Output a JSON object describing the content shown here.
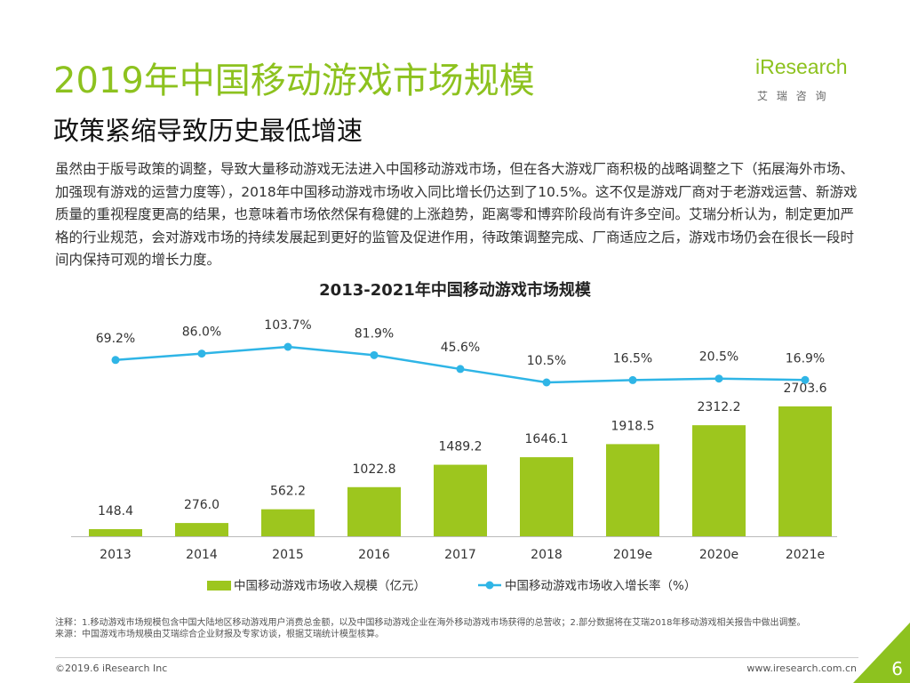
{
  "header": {
    "title": "2019年中国移动游戏市场规模",
    "subtitle": "政策紧缩导致历史最低增速"
  },
  "logo": {
    "name": "iResearch",
    "cn": "艾 瑞 咨 询"
  },
  "body": "虽然由于版号政策的调整，导致大量移动游戏无法进入中国移动游戏市场，但在各大游戏厂商积极的战略调整之下（拓展海外市场、加强现有游戏的运营力度等），2018年中国移动游戏市场收入同比增长仍达到了10.5%。这不仅是游戏厂商对于老游戏运营、新游戏质量的重视程度更高的结果，也意味着市场依然保有稳健的上涨趋势，距离零和博弈阶段尚有许多空间。艾瑞分析认为，制定更加严格的行业规范，会对游戏市场的持续发展起到更好的监管及促进作用，待政策调整完成、厂商适应之后，游戏市场仍会在很长一段时间内保持可观的增长力度。",
  "chart_data": {
    "type": "bar-line",
    "title": "2013-2021年中国移动游戏市场规模",
    "categories": [
      "2013",
      "2014",
      "2015",
      "2016",
      "2017",
      "2018",
      "2019e",
      "2020e",
      "2021e"
    ],
    "series": [
      {
        "name": "中国移动游戏市场收入规模（亿元）",
        "type": "bar",
        "color": "#9dc61e",
        "values": [
          148.4,
          276.0,
          562.2,
          1022.8,
          1489.2,
          1646.1,
          1918.5,
          2312.2,
          2703.6
        ],
        "value_labels": [
          "148.4",
          "276.0",
          "562.2",
          "1022.8",
          "1489.2",
          "1646.1",
          "1918.5",
          "2312.2",
          "2703.6"
        ]
      },
      {
        "name": "中国移动游戏市场收入增长率（%）",
        "type": "line",
        "color": "#2fb5e6",
        "values": [
          69.2,
          86.0,
          103.7,
          81.9,
          45.6,
          10.5,
          16.5,
          20.5,
          16.9
        ],
        "value_labels": [
          "69.2%",
          "86.0%",
          "103.7%",
          "81.9%",
          "45.6%",
          "10.5%",
          "16.5%",
          "20.5%",
          "16.9%"
        ]
      }
    ]
  },
  "notes": [
    "注释：1.移动游戏市场规模包含中国大陆地区移动游戏用户消费总金额，以及中国移动游戏企业在海外移动游戏市场获得的总营收；2.部分数据将在艾瑞2018年移动游戏相关报告中做出调整。",
    "来源：中国游戏市场规模由艾瑞综合企业财报及专家访谈，根据艾瑞统计模型核算。"
  ],
  "footer": {
    "copyright": "©2019.6 iResearch Inc",
    "url": "www.iresearch.com.cn",
    "page": 6
  }
}
